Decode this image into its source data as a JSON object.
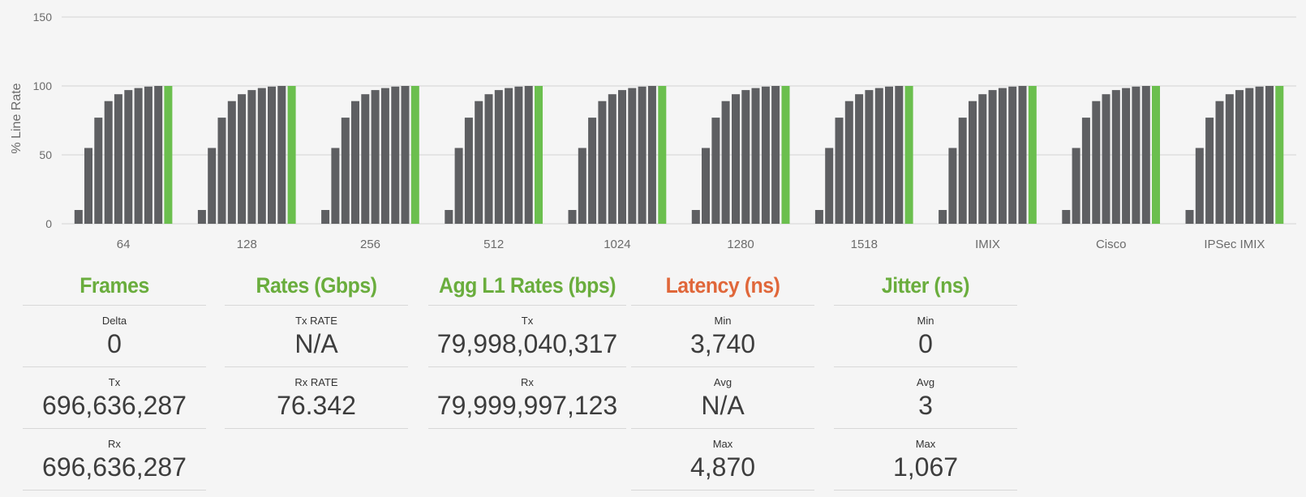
{
  "chart_data": {
    "type": "bar",
    "ylabel": "% Line Rate",
    "ylim": [
      0,
      150
    ],
    "yticks": [
      0,
      50,
      100,
      150
    ],
    "grid": true,
    "categories": [
      "64",
      "128",
      "256",
      "512",
      "1024",
      "1280",
      "1518",
      "IMIX",
      "Cisco",
      "IPSec IMIX"
    ],
    "bar_values_per_category": [
      10,
      55,
      77,
      89,
      94,
      97,
      98.5,
      99.5,
      100
    ],
    "final_bar_value": 100,
    "colors": {
      "bar": "#5e5f62",
      "final_bar": "#6bbf4e",
      "grid": "#d4d4d4"
    }
  },
  "panels": [
    {
      "title": "Frames",
      "color": "#6aad3d",
      "stats": [
        {
          "label": "Delta",
          "value": "0"
        },
        {
          "label": "Tx",
          "value": "696,636,287"
        },
        {
          "label": "Rx",
          "value": "696,636,287"
        }
      ]
    },
    {
      "title": "Rates (Gbps)",
      "color": "#6aad3d",
      "stats": [
        {
          "label": "Tx RATE",
          "value": "N/A"
        },
        {
          "label": "Rx RATE",
          "value": "76.342"
        }
      ]
    },
    {
      "title": "Agg L1 Rates (bps)",
      "color": "#6aad3d",
      "stats": [
        {
          "label": "Tx",
          "value": "79,998,040,317"
        },
        {
          "label": "Rx",
          "value": "79,999,997,123"
        }
      ]
    },
    {
      "title": "Latency (ns)",
      "color": "#e0673a",
      "stats": [
        {
          "label": "Min",
          "value": "3,740"
        },
        {
          "label": "Avg",
          "value": "N/A"
        },
        {
          "label": "Max",
          "value": "4,870"
        }
      ]
    },
    {
      "title": "Jitter (ns)",
      "color": "#6aad3d",
      "stats": [
        {
          "label": "Min",
          "value": "0"
        },
        {
          "label": "Avg",
          "value": "3"
        },
        {
          "label": "Max",
          "value": "1,067"
        }
      ]
    }
  ]
}
